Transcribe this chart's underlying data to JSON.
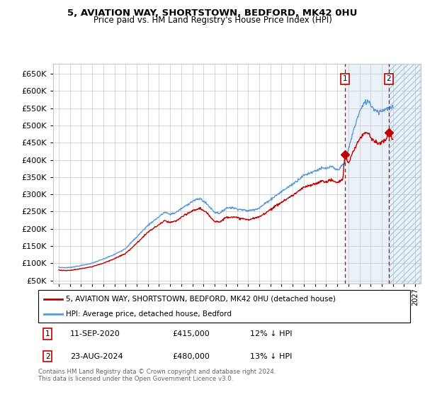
{
  "title1": "5, AVIATION WAY, SHORTSTOWN, BEDFORD, MK42 0HU",
  "title2": "Price paid vs. HM Land Registry's House Price Index (HPI)",
  "yticks": [
    50000,
    100000,
    150000,
    200000,
    250000,
    300000,
    350000,
    400000,
    450000,
    500000,
    550000,
    600000,
    650000
  ],
  "ylim": [
    40000,
    680000
  ],
  "xlim_start": 1994.5,
  "xlim_end": 2027.5,
  "legend_label1": "5, AVIATION WAY, SHORTSTOWN, BEDFORD, MK42 0HU (detached house)",
  "legend_label2": "HPI: Average price, detached house, Bedford",
  "sale1_date": 2020.69,
  "sale1_price": 415000,
  "sale2_date": 2024.64,
  "sale2_price": 480000,
  "footnote1": "Contains HM Land Registry data © Crown copyright and database right 2024.",
  "footnote2": "This data is licensed under the Open Government Licence v3.0.",
  "hpi_color": "#5B9BD5",
  "price_color": "#C00000",
  "sale_box_color": "#C00000",
  "bg_color": "#FFFFFF",
  "grid_color": "#C8C8C8",
  "shade_color": "#DCE9F5"
}
